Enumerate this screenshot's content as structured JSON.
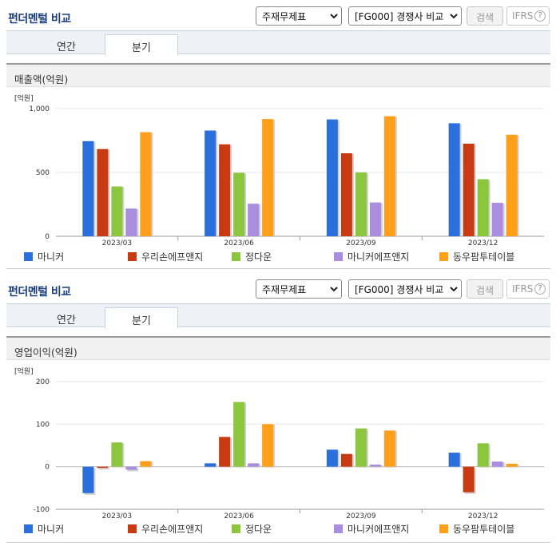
{
  "panels": [
    {
      "title": "펀더멘털 비교",
      "select1": "주재무제표",
      "select2": "[FG000] 경쟁사 비교",
      "search_label": "검색",
      "ifrs_label": "IFRS",
      "help_label": "?",
      "tabs": [
        "연간",
        "분기"
      ],
      "active_tab": "분기",
      "section_title": "매출액(억원)"
    },
    {
      "title": "펀더멘털 비교",
      "select1": "주재무제표",
      "select2": "[FG000] 경쟁사 비교",
      "search_label": "검색",
      "ifrs_label": "IFRS",
      "help_label": "?",
      "tabs": [
        "연간",
        "분기"
      ],
      "active_tab": "분기",
      "section_title": "영업이익(억원)"
    }
  ],
  "colors": {
    "마니커": "#2a6fdb",
    "우리손에프앤지": "#c83a12",
    "정다운": "#8cc63f",
    "마니커에프앤지": "#a98ee0",
    "동우팜투테이블": "#ff9f1a"
  },
  "chart_data": [
    {
      "type": "bar",
      "unit_label": "[억원]",
      "categories": [
        "2023/03",
        "2023/06",
        "2023/09",
        "2023/12"
      ],
      "ylim": [
        0,
        1000
      ],
      "yticks": [
        "0",
        "500",
        "1,000"
      ],
      "ytick_values": [
        0,
        500,
        1000
      ],
      "series": [
        {
          "name": "마니커",
          "values": [
            745,
            828,
            915,
            885
          ]
        },
        {
          "name": "우리손에프앤지",
          "values": [
            683,
            720,
            650,
            725
          ]
        },
        {
          "name": "정다운",
          "values": [
            390,
            497,
            500,
            447
          ]
        },
        {
          "name": "마니커에프앤지",
          "values": [
            217,
            255,
            265,
            262
          ]
        },
        {
          "name": "동우팜투테이블",
          "values": [
            815,
            918,
            940,
            795
          ]
        }
      ]
    },
    {
      "type": "bar",
      "unit_label": "[억원]",
      "categories": [
        "2023/03",
        "2023/06",
        "2023/09",
        "2023/12"
      ],
      "ylim": [
        -100,
        200
      ],
      "yticks": [
        "-100",
        "0",
        "100",
        "200"
      ],
      "ytick_values": [
        -100,
        0,
        100,
        200
      ],
      "series": [
        {
          "name": "마니커",
          "values": [
            -62,
            8,
            40,
            33
          ]
        },
        {
          "name": "우리손에프앤지",
          "values": [
            -3,
            70,
            30,
            -60
          ]
        },
        {
          "name": "정다운",
          "values": [
            57,
            152,
            90,
            55
          ]
        },
        {
          "name": "마니커에프앤지",
          "values": [
            -7,
            8,
            5,
            12
          ]
        },
        {
          "name": "동우팜투테이블",
          "values": [
            13,
            100,
            85,
            7
          ]
        }
      ]
    }
  ]
}
